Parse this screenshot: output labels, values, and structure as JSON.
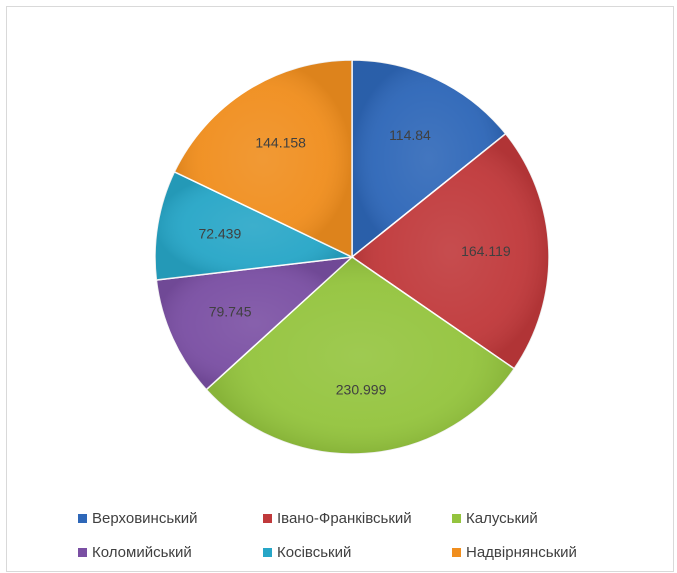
{
  "chart_data": {
    "type": "pie",
    "categories": [
      "Верховинський",
      "Івано-Франківський",
      "Калуський",
      "Коломийський",
      "Косівський",
      "Надвірнянський"
    ],
    "values": [
      114.84,
      164.119,
      230.999,
      79.745,
      72.439,
      144.158
    ],
    "data_labels": [
      "114.84",
      "164.119",
      "230.999",
      "79.745",
      "72.439",
      "144.158"
    ],
    "colors": [
      "#2e67b8",
      "#c0393b",
      "#94c43e",
      "#7a4fa3",
      "#27a6c7",
      "#f08e1e"
    ],
    "start_angle": "top (12 o'clock)",
    "direction": "clockwise",
    "legend_position": "bottom"
  }
}
